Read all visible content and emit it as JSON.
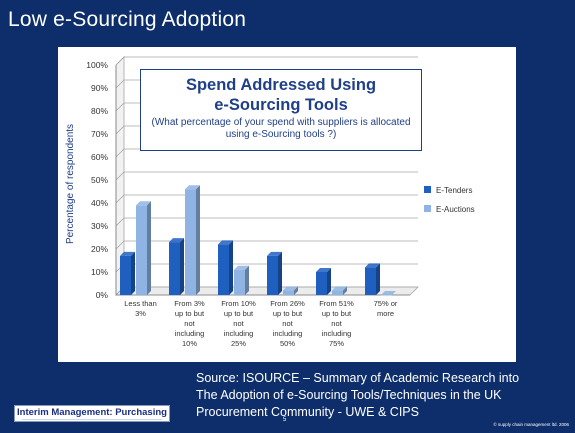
{
  "slide": {
    "title": "Low e-Sourcing Adoption",
    "source_lines": [
      "Source: ISOURCE – Summary of Academic Research into",
      "The Adoption of e-Sourcing Tools/Techniques in the UK",
      "Procurement Community - UWE & CIPS"
    ],
    "brand": "Interim Management: Purchasing",
    "page_number": "5",
    "copyright": "© supply chain management ltd. 2006"
  },
  "callout": {
    "title_line1": "Spend Addressed Using",
    "title_line2": "e-Sourcing Tools",
    "subtitle": "(What percentage of your spend with suppliers is allocated using e-Sourcing tools ?)"
  },
  "colors": {
    "e_tenders": "#1f5fbf",
    "e_auctions": "#8fb4e3",
    "slide_bg": "#0d2e6b"
  },
  "chart_data": {
    "type": "bar",
    "ylabel": "Percentage of respondents",
    "xlabel": "",
    "ylim": [
      0,
      100
    ],
    "yticks": [
      0,
      10,
      20,
      30,
      40,
      50,
      60,
      70,
      80,
      90,
      100
    ],
    "tick_format": "percent",
    "grid": true,
    "legend_position": "right",
    "categories": [
      [
        "Less than",
        "3%"
      ],
      [
        "From 3%",
        "up to but",
        "not",
        "including",
        "10%"
      ],
      [
        "From 10%",
        "up to but",
        "not",
        "including",
        "25%"
      ],
      [
        "From 26%",
        "up to but",
        "not",
        "including",
        "50%"
      ],
      [
        "From 51%",
        "up to but",
        "not",
        "including",
        "75%"
      ],
      [
        "75% or",
        "more"
      ]
    ],
    "series": [
      {
        "name": "E-Tenders",
        "values": [
          17,
          23,
          22,
          17,
          10,
          12
        ]
      },
      {
        "name": "E-Auctions",
        "values": [
          39,
          46,
          11,
          2,
          2,
          0
        ]
      }
    ]
  }
}
